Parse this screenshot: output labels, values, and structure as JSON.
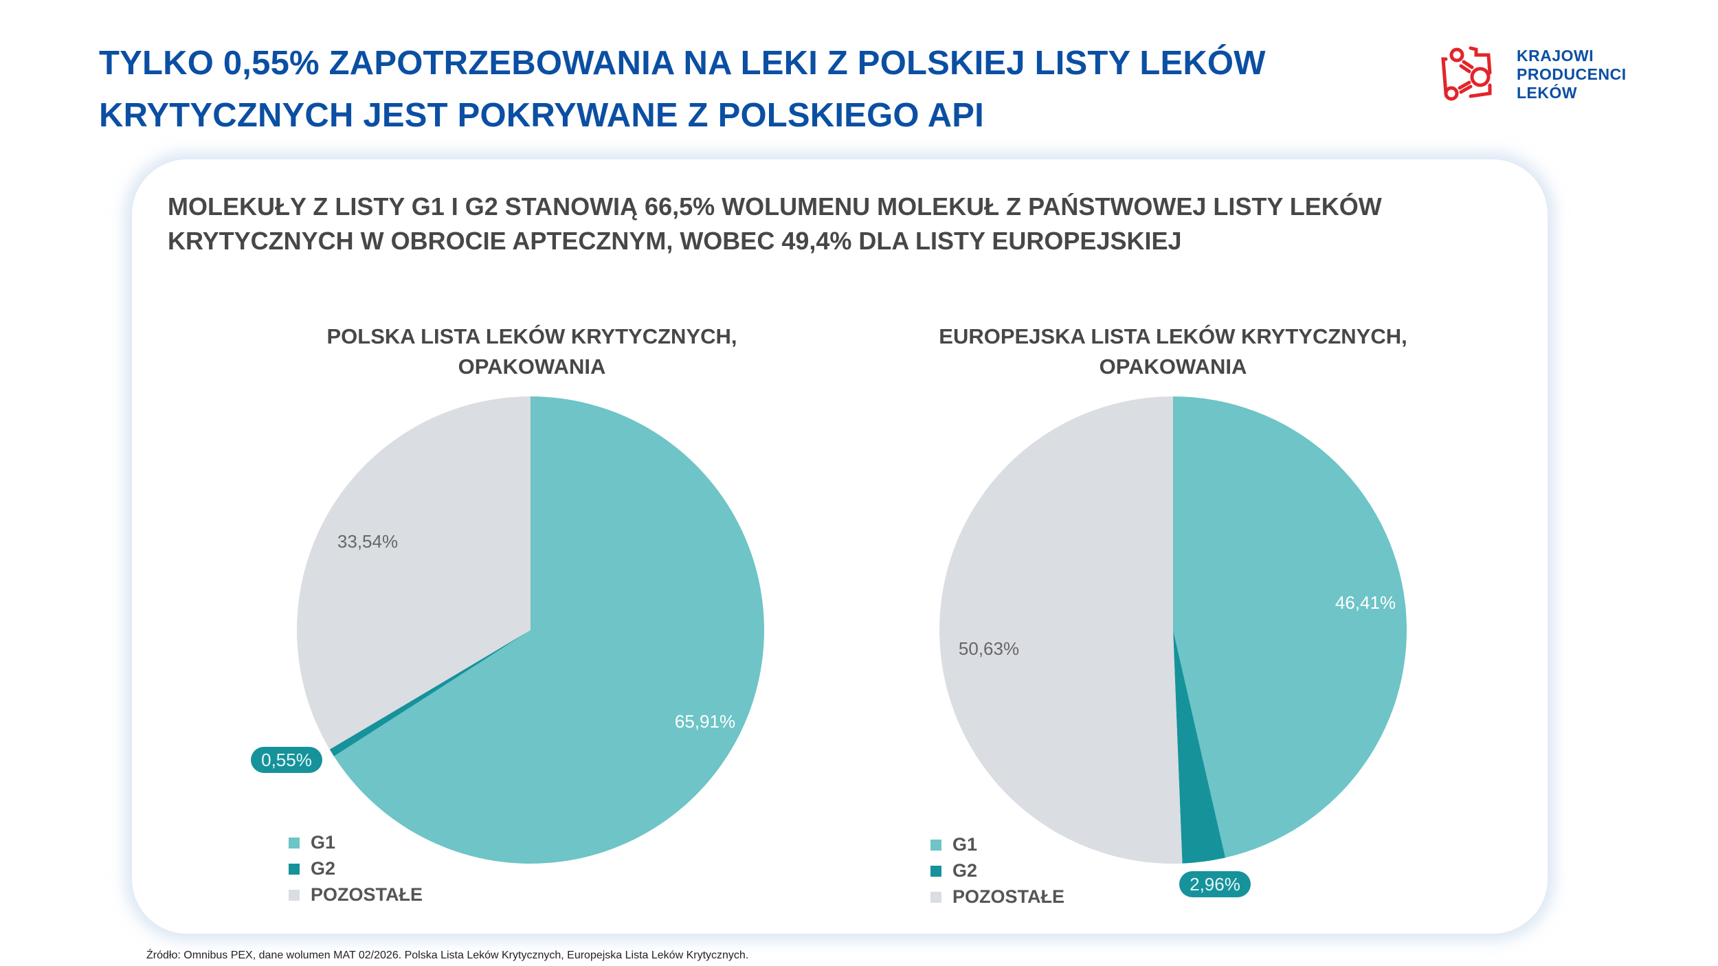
{
  "header": {
    "title_line1": "TYLKO 0,55% ZAPOTRZEBOWANIA NA LEKI Z POLSKIEJ LISTY LEKÓW",
    "title_line2": "KRYTYCZNYCH JEST POKRYWANE Z POLSKIEGO API"
  },
  "logo": {
    "line1": "KRAJOWI",
    "line2": "PRODUCENCI",
    "line3": "LEKÓW",
    "color": "#e3242b"
  },
  "card": {
    "subtitle_line1": "MOLEKUŁY Z LISTY G1 I G2 STANOWIĄ 66,5% WOLUMENU MOLEKUŁ Z PAŃSTWOWEJ LISTY LEKÓW",
    "subtitle_line2": "KRYTYCZNYCH W OBROCIE APTECZNYM, WOBEC 49,4% DLA LISTY EUROPEJSKIEJ"
  },
  "colors": {
    "G1": "#6ec4c6",
    "G2": "#16929b",
    "POZOSTAŁE": "#dadde1",
    "title": "#0b4fa3"
  },
  "chart_data": [
    {
      "type": "pie",
      "title_line1": "POLSKA LISTA LEKÓW KRYTYCZNYCH,",
      "title_line2": "OPAKOWANIA",
      "categories": [
        "G1",
        "G2",
        "POZOSTAŁE"
      ],
      "values": [
        65.91,
        0.55,
        33.54
      ],
      "labels": [
        "65,91%",
        "0,55%",
        "33,54%"
      ],
      "start": "top",
      "direction": "clockwise",
      "legend": [
        "G1",
        "G2",
        "POZOSTAŁE"
      ],
      "legend_placement": "bottom-left"
    },
    {
      "type": "pie",
      "title_line1": "EUROPEJSKA LISTA LEKÓW KRYTYCZNYCH,",
      "title_line2": "OPAKOWANIA",
      "categories": [
        "G1",
        "G2",
        "POZOSTAŁE"
      ],
      "values": [
        46.41,
        2.96,
        50.63
      ],
      "labels": [
        "46,41%",
        "2,96%",
        "50,63%"
      ],
      "start": "top",
      "direction": "clockwise",
      "legend": [
        "G1",
        "G2",
        "POZOSTAŁE"
      ],
      "legend_placement": "bottom-left"
    }
  ],
  "footnote": "Źródło: Omnibus PEX, dane wolumen MAT 02/2026. Polska Lista Leków Krytycznych, Europejska Lista Leków Krytycznych."
}
